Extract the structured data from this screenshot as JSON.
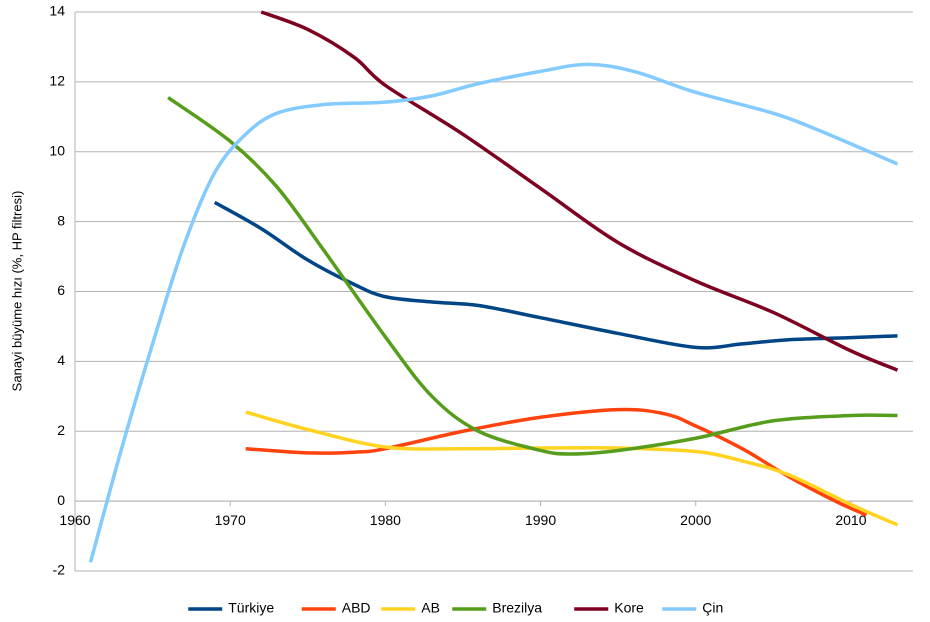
{
  "chart_data": {
    "type": "line",
    "y_label": "Sanayi büyüme hızı (%, HP filtresi)",
    "xlim": [
      1960,
      2014
    ],
    "xticks": [
      1960,
      1970,
      1980,
      1990,
      2000,
      2010
    ],
    "ylim": [
      -2,
      14
    ],
    "yticks": [
      -2,
      0,
      2,
      4,
      6,
      8,
      10,
      12,
      14
    ],
    "grid": true,
    "legend": "bottom",
    "series": [
      {
        "name": "Türkiye",
        "color": "#004586",
        "x": [
          1969,
          1972,
          1975,
          1978,
          1980,
          1983,
          1986,
          1990,
          1995,
          2000,
          2003,
          2006,
          2010,
          2013
        ],
        "values": [
          8.55,
          7.8,
          6.9,
          6.2,
          5.85,
          5.7,
          5.6,
          5.25,
          4.8,
          4.4,
          4.5,
          4.62,
          4.68,
          4.73
        ]
      },
      {
        "name": "ABD",
        "color": "#ff420e",
        "x": [
          1971,
          1975,
          1978,
          1980,
          1985,
          1990,
          1995,
          1998,
          2000,
          2003,
          2006,
          2009,
          2011
        ],
        "values": [
          1.5,
          1.38,
          1.4,
          1.5,
          2.0,
          2.4,
          2.62,
          2.5,
          2.15,
          1.5,
          0.7,
          0,
          -0.4
        ]
      },
      {
        "name": "AB",
        "color": "#ffd320",
        "x": [
          1971,
          1975,
          1980,
          1985,
          1990,
          1995,
          2000,
          2003,
          2006,
          2010,
          2013
        ],
        "values": [
          2.55,
          2.05,
          1.55,
          1.5,
          1.52,
          1.52,
          1.42,
          1.15,
          0.75,
          -0.1,
          -0.68
        ]
      },
      {
        "name": "Brezilya",
        "color": "#579d1c",
        "x": [
          1966,
          1970,
          1973,
          1976,
          1980,
          1983,
          1986,
          1990,
          1992,
          1995,
          2000,
          2005,
          2010,
          2013
        ],
        "values": [
          11.55,
          10.3,
          9.0,
          7.2,
          4.7,
          3.0,
          2.0,
          1.45,
          1.35,
          1.45,
          1.8,
          2.3,
          2.45,
          2.45
        ]
      },
      {
        "name": "Kore",
        "color": "#7e0021",
        "x": [
          1972,
          1975,
          1978,
          1980,
          1985,
          1990,
          1995,
          2000,
          2005,
          2010,
          2013
        ],
        "values": [
          14.0,
          13.5,
          12.7,
          11.9,
          10.5,
          8.95,
          7.4,
          6.3,
          5.4,
          4.3,
          3.75
        ]
      },
      {
        "name": "Çin",
        "color": "#83caff",
        "x": [
          1961,
          1963,
          1965,
          1967,
          1969,
          1971,
          1973,
          1976,
          1980,
          1983,
          1986,
          1990,
          1993,
          1996,
          2000,
          2005,
          2008,
          2013
        ],
        "values": [
          -1.75,
          1.5,
          4.5,
          7.3,
          9.4,
          10.5,
          11.1,
          11.35,
          11.42,
          11.6,
          11.95,
          12.3,
          12.5,
          12.3,
          11.7,
          11.1,
          10.6,
          9.65
        ]
      }
    ]
  }
}
